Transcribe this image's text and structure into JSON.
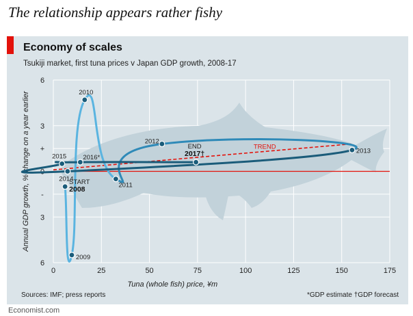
{
  "headline": "The relationship appears rather fishy",
  "chart_data": {
    "type": "line",
    "title": "Economy of scales",
    "subtitle": "Tsukiji market, first tuna prices v Japan GDP growth, 2008-17",
    "xlabel": "Tuna (whole fish) price, ¥m",
    "ylabel": "Annual GDP growth, % change on a year earlier",
    "xlim": [
      0,
      175
    ],
    "ylim": [
      -6,
      6
    ],
    "x_ticks": [
      0,
      25,
      50,
      75,
      100,
      125,
      150,
      175
    ],
    "y_ticks": [
      {
        "value": 6,
        "label": "6"
      },
      {
        "value": 3,
        "label": "3"
      },
      {
        "value": 1.5,
        "label": "+"
      },
      {
        "value": 0,
        "label": "0"
      },
      {
        "value": -1.5,
        "label": "-"
      },
      {
        "value": -3,
        "label": "3"
      },
      {
        "value": -6,
        "label": "6"
      }
    ],
    "points": [
      {
        "year": 2008,
        "label": "START",
        "sub": "2008",
        "x": 6.1,
        "y": -1.0
      },
      {
        "year": 2009,
        "label": "2009",
        "x": 9.6,
        "y": -5.5
      },
      {
        "year": 2010,
        "label": "2010",
        "x": 16.3,
        "y": 4.7
      },
      {
        "year": 2011,
        "label": "2011",
        "x": 32.5,
        "y": -0.5
      },
      {
        "year": 2012,
        "label": "2012",
        "x": 56.5,
        "y": 1.8
      },
      {
        "year": 2013,
        "label": "2013",
        "x": 155.4,
        "y": 1.4
      },
      {
        "year": 2014,
        "label": "2014",
        "x": 7.4,
        "y": 0.0
      },
      {
        "year": 2015,
        "label": "2015",
        "x": 4.5,
        "y": 0.5
      },
      {
        "year": 2016,
        "label": "2016*",
        "x": 14.0,
        "y": 0.6
      },
      {
        "year": 2017,
        "label": "END",
        "sub": "2017†",
        "x": 74.2,
        "y": 0.6
      }
    ],
    "trend": {
      "label": "TREND",
      "x": [
        0,
        155
      ],
      "y": [
        0.1,
        1.8
      ]
    },
    "colors": {
      "early": "#5ab4e0",
      "late": "#1b5c7a",
      "trend": "#e3120b",
      "zero": "#e3120b",
      "fish": "#c2d2da"
    }
  },
  "sources": "Sources: IMF; press reports",
  "footnote": "*GDP estimate  †GDP forecast",
  "brand": "Economist.com"
}
